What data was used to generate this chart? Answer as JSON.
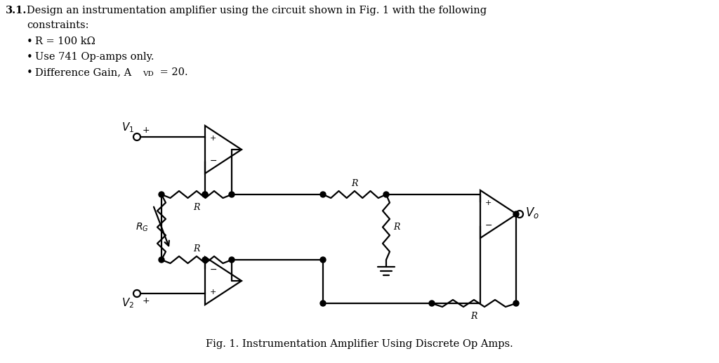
{
  "bg_color": "#ffffff",
  "line_color": "#000000",
  "line_width": 1.6,
  "fig_width": 10.24,
  "fig_height": 5.17,
  "fig_caption": "Fig. 1. Instrumentation Amplifier Using Discrete Op Amps.",
  "heading_number": "3.1.",
  "heading_text": "Design an instrumentation amplifier using the circuit shown in Fig. 1 with the following",
  "heading_text2": "constraints:",
  "bullet1": "R = 100 kΩ",
  "bullet2": "Use 741 Op-amps only.",
  "bullet3_pre": "Difference Gain, A",
  "bullet3_sub": "VD",
  "bullet3_post": " = 20."
}
